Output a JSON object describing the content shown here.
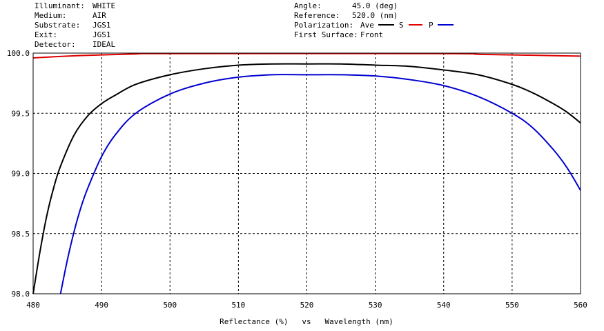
{
  "header": {
    "left": [
      {
        "label": "Illuminant:",
        "value": "WHITE"
      },
      {
        "label": "Medium:",
        "value": "AIR"
      },
      {
        "label": "Substrate:",
        "value": "JGS1"
      },
      {
        "label": "Exit:",
        "value": "JGS1"
      },
      {
        "label": "Detector:",
        "value": "IDEAL"
      }
    ],
    "right": [
      {
        "label": "Angle:",
        "value": "45.0 (deg)"
      },
      {
        "label": "Reference:",
        "value": "520.0 (nm)"
      },
      {
        "label": "Polarization:",
        "value": "Ave"
      },
      {
        "label": "First Surface:",
        "value": "Front"
      }
    ],
    "legend": [
      "S",
      "P"
    ]
  },
  "colors": {
    "ave": "#000000",
    "s": "#e00000",
    "p": "#0000d0"
  },
  "chart_data": {
    "type": "line",
    "xlabel": "Reflectance (%)   vs   Wavelength (nm)",
    "xlim": [
      480,
      560
    ],
    "ylim": [
      98.0,
      100.0
    ],
    "xticks": [
      "480",
      "490",
      "500",
      "510",
      "520",
      "530",
      "540",
      "550",
      "560"
    ],
    "yticks": [
      "98.0",
      "98.5",
      "99.0",
      "99.5",
      "100.0"
    ],
    "grid": true,
    "series": [
      {
        "name": "Ave",
        "color": "#000000",
        "x": [
          480,
          481,
          482,
          483,
          484,
          486,
          488,
          490,
          492,
          495,
          500,
          505,
          510,
          515,
          520,
          525,
          530,
          535,
          540,
          545,
          550,
          553,
          556,
          558,
          560
        ],
        "y": [
          98.0,
          98.35,
          98.65,
          98.88,
          99.06,
          99.32,
          99.48,
          99.58,
          99.65,
          99.74,
          99.82,
          99.87,
          99.9,
          99.91,
          99.91,
          99.91,
          99.9,
          99.89,
          99.86,
          99.82,
          99.74,
          99.67,
          99.58,
          99.51,
          99.42
        ]
      },
      {
        "name": "S",
        "color": "#e00000",
        "x": [
          480,
          485,
          490,
          495,
          500,
          540,
          545,
          550,
          555,
          560
        ],
        "y": [
          99.96,
          99.975,
          99.985,
          99.993,
          99.996,
          99.996,
          99.99,
          99.985,
          99.98,
          99.975
        ]
      },
      {
        "name": "P",
        "color": "#0000d0",
        "x": [
          484,
          485,
          486,
          487,
          488,
          490,
          492,
          495,
          500,
          505,
          510,
          515,
          520,
          525,
          530,
          535,
          540,
          545,
          550,
          553,
          556,
          558,
          560
        ],
        "y": [
          98.0,
          98.28,
          98.52,
          98.72,
          98.88,
          99.14,
          99.32,
          99.5,
          99.66,
          99.75,
          99.8,
          99.82,
          99.82,
          99.82,
          99.81,
          99.78,
          99.73,
          99.64,
          99.5,
          99.38,
          99.2,
          99.05,
          98.86
        ]
      }
    ]
  }
}
